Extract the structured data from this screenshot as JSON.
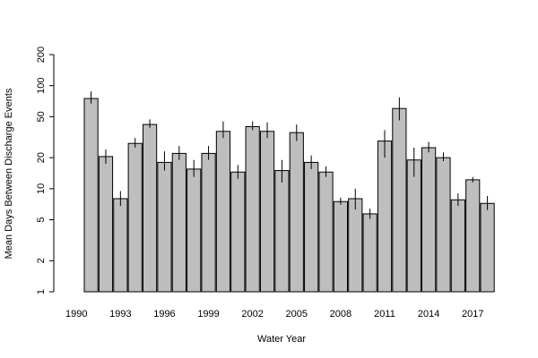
{
  "chart_data": {
    "type": "bar",
    "xlabel": "Water Year",
    "ylabel": "Mean Days Between Discharge Events",
    "y_scale": "log",
    "ylim": [
      1,
      200
    ],
    "y_ticks": [
      1,
      2,
      5,
      10,
      20,
      50,
      100,
      200
    ],
    "y_tick_labels": [
      "1",
      "2",
      "5",
      "10",
      "20",
      "50",
      "100",
      "200"
    ],
    "x_tick_labels": [
      "1990",
      "1993",
      "1996",
      "1999",
      "2002",
      "2005",
      "2008",
      "2011",
      "2014",
      "2017"
    ],
    "bar_color": "#bebebe",
    "categories": [
      1991,
      1992,
      1993,
      1994,
      1995,
      1996,
      1997,
      1998,
      1999,
      2000,
      2001,
      2002,
      2003,
      2004,
      2005,
      2006,
      2007,
      2008,
      2009,
      2010,
      2011,
      2012,
      2013,
      2014,
      2015,
      2016,
      2017,
      2018
    ],
    "values": [
      75,
      20.5,
      8,
      27.5,
      42,
      18,
      22,
      15.5,
      22,
      36,
      14.5,
      40,
      36,
      15,
      35,
      18,
      14.5,
      7.5,
      8,
      5.7,
      29,
      60,
      19,
      25,
      20,
      7.8,
      12.2,
      7.2
    ],
    "err_low": [
      67,
      17.5,
      6.8,
      25,
      39,
      15,
      19,
      13,
      19,
      31,
      12.5,
      37,
      31,
      11.5,
      29,
      15.5,
      13,
      7,
      6.3,
      5.1,
      20,
      46,
      13,
      22.5,
      18.5,
      6.8,
      11.5,
      6.2
    ],
    "err_high": [
      88,
      24,
      9.5,
      31,
      47,
      23,
      26,
      19,
      26,
      45,
      17,
      45,
      44,
      19,
      42,
      21,
      16.5,
      8.2,
      10,
      6.4,
      37,
      77,
      25,
      28.5,
      22.5,
      9,
      13,
      8.5
    ]
  }
}
